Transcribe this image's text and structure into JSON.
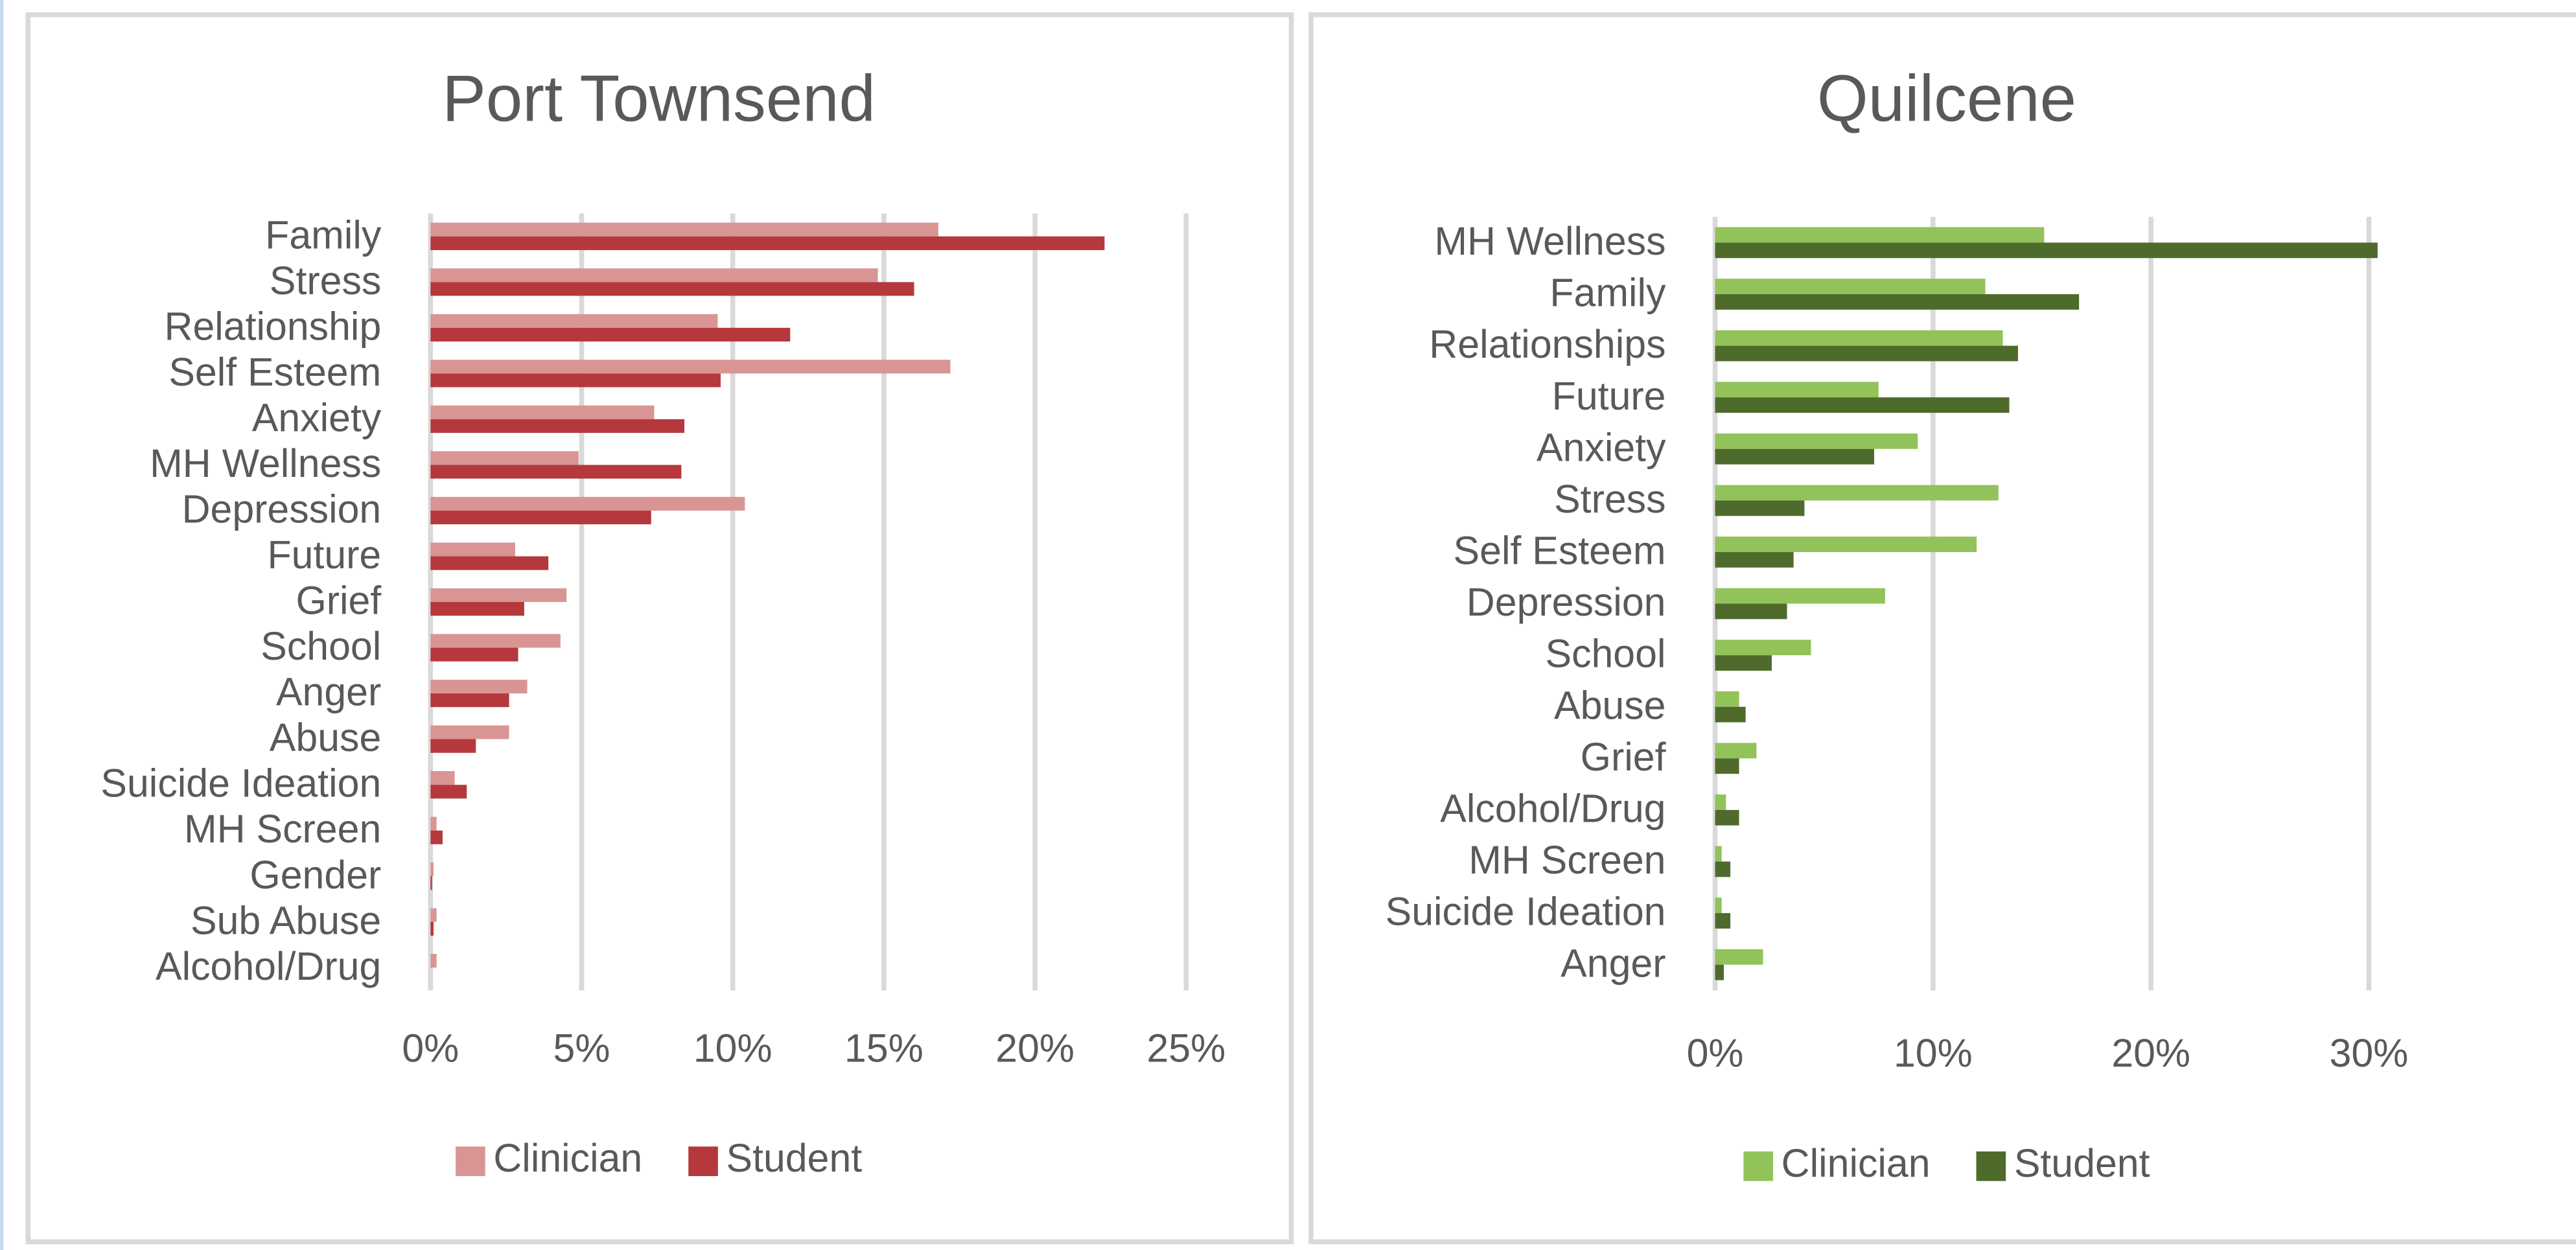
{
  "chart_data": [
    {
      "type": "bar",
      "orientation": "horizontal",
      "title": "Port Townsend",
      "categories": [
        "Family",
        "Stress",
        "Relationship",
        "Self Esteem",
        "Anxiety",
        "MH Wellness",
        "Depression",
        "Future",
        "Grief",
        "School",
        "Anger",
        "Abuse",
        "Suicide Ideation",
        "MH Screen",
        "Gender",
        "Sub Abuse",
        "Alcohol/Drug"
      ],
      "series": [
        {
          "name": "Clinician",
          "color": "#d99594",
          "values": [
            16.8,
            14.8,
            9.5,
            17.2,
            7.4,
            4.9,
            10.4,
            2.8,
            4.5,
            4.3,
            3.2,
            2.6,
            0.8,
            0.2,
            0.1,
            0.2,
            0.2
          ]
        },
        {
          "name": "Student",
          "color": "#b5393c",
          "values": [
            22.3,
            16.0,
            11.9,
            9.6,
            8.4,
            8.3,
            7.3,
            3.9,
            3.1,
            2.9,
            2.6,
            1.5,
            1.2,
            0.4,
            0.05,
            0.1,
            0
          ]
        }
      ],
      "xlim": [
        0,
        25
      ],
      "xticks": [
        {
          "value": 0,
          "label": "0%"
        },
        {
          "value": 5,
          "label": "5%"
        },
        {
          "value": 10,
          "label": "10%"
        },
        {
          "value": 15,
          "label": "15%"
        },
        {
          "value": 20,
          "label": "20%"
        },
        {
          "value": 25,
          "label": "25%"
        }
      ],
      "grid": true,
      "legend": "bottom"
    },
    {
      "type": "bar",
      "orientation": "horizontal",
      "title": "Quilcene",
      "categories": [
        "MH Wellness",
        "Family",
        "Relationships",
        "Future",
        "Anxiety",
        "Stress",
        "Self Esteem",
        "Depression",
        "School",
        "Abuse",
        "Grief",
        "Alcohol/Drug",
        "MH Screen",
        "Suicide Ideation",
        "Anger"
      ],
      "series": [
        {
          "name": "Clinician",
          "color": "#92c25a",
          "values": [
            15.1,
            12.4,
            13.2,
            7.5,
            9.3,
            13.0,
            12.0,
            7.8,
            4.4,
            1.1,
            1.9,
            0.5,
            0.3,
            0.3,
            2.2
          ]
        },
        {
          "name": "Student",
          "color": "#4e6b2c",
          "values": [
            30.4,
            16.7,
            13.9,
            13.5,
            7.3,
            4.1,
            3.6,
            3.3,
            2.6,
            1.4,
            1.1,
            1.1,
            0.7,
            0.7,
            0.4
          ]
        }
      ],
      "xlim": [
        0,
        30
      ],
      "xticks": [
        {
          "value": 0,
          "label": "0%"
        },
        {
          "value": 10,
          "label": "10%"
        },
        {
          "value": 20,
          "label": "20%"
        },
        {
          "value": 30,
          "label": "30%"
        }
      ],
      "grid": true,
      "legend": "bottom"
    }
  ]
}
